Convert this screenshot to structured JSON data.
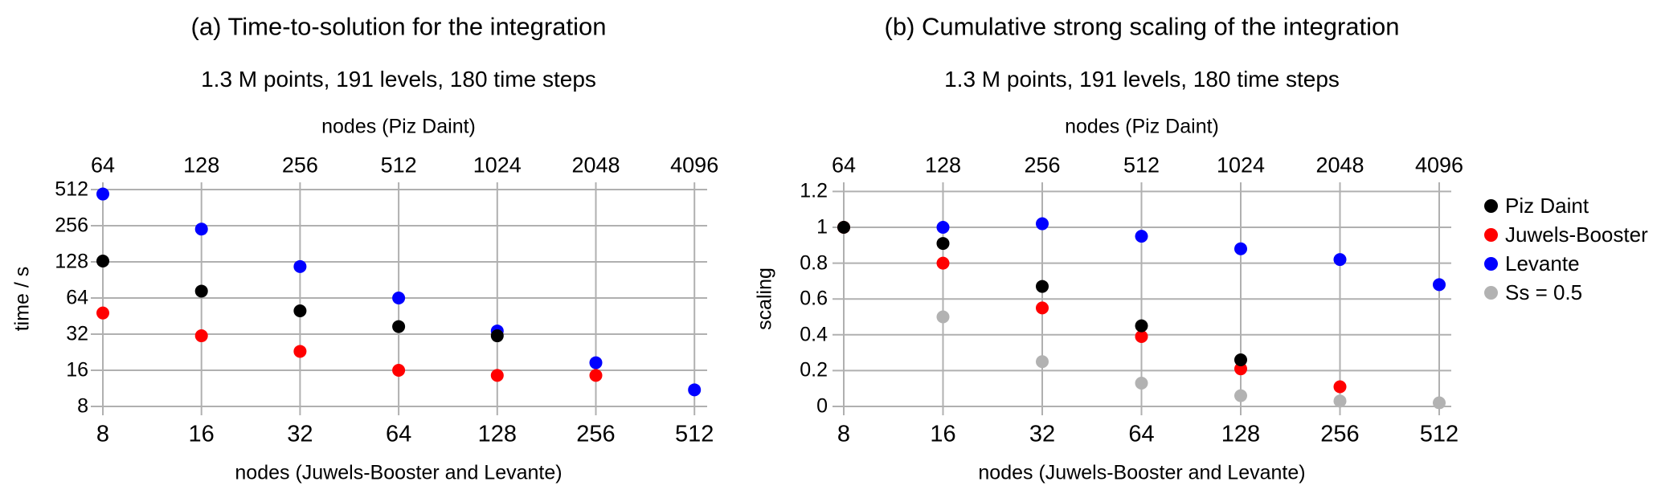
{
  "page": {
    "background": "#ffffff"
  },
  "colors": {
    "black": "#000000",
    "red": "#ff0000",
    "blue": "#0000ff",
    "gray": "#b2b2b2",
    "grid": "#b0b0b0",
    "text": "#000000"
  },
  "legend": {
    "items": [
      {
        "label": "Piz Daint",
        "color": "black"
      },
      {
        "label": "Juwels-Booster",
        "color": "red"
      },
      {
        "label": "Levante",
        "color": "blue"
      },
      {
        "label": "Ss = 0.5",
        "color": "gray"
      }
    ]
  },
  "chart_data": [
    {
      "type": "scatter",
      "panel": "a",
      "title": "(a) Time-to-solution for the integration",
      "subtitle": "1.3 M points, 191 levels, 180 time steps",
      "top_axis_label": "nodes (Piz Daint)",
      "bottom_axis_label": "nodes (Juwels-Booster and Levante)",
      "ylabel": "time / s",
      "y_scale": "log2",
      "x_scale": "log2",
      "grid": true,
      "x_ticks_bottom": [
        8,
        16,
        32,
        64,
        128,
        256,
        512
      ],
      "x_ticks_top": [
        64,
        128,
        256,
        512,
        1024,
        2048,
        4096
      ],
      "y_ticks": [
        512,
        256,
        128,
        64,
        32,
        16,
        8
      ],
      "ylim_ticks": [
        8,
        512
      ],
      "series": [
        {
          "name": "Piz Daint",
          "color": "black",
          "points": [
            [
              8,
              130
            ],
            [
              16,
              73
            ],
            [
              32,
              50
            ],
            [
              64,
              37
            ],
            [
              128,
              31
            ]
          ]
        },
        {
          "name": "Juwels-Booster",
          "color": "red",
          "points": [
            [
              8,
              48
            ],
            [
              16,
              31
            ],
            [
              32,
              23
            ],
            [
              64,
              16
            ],
            [
              128,
              14.5
            ],
            [
              256,
              14.5
            ]
          ]
        },
        {
          "name": "Levante",
          "color": "blue",
          "points": [
            [
              8,
              470
            ],
            [
              16,
              240
            ],
            [
              32,
              117
            ],
            [
              64,
              64
            ],
            [
              128,
              34
            ],
            [
              256,
              18.5
            ],
            [
              512,
              11
            ]
          ]
        }
      ]
    },
    {
      "type": "scatter",
      "panel": "b",
      "title": "(b) Cumulative strong scaling of the integration",
      "subtitle": "1.3 M points, 191 levels, 180 time steps",
      "top_axis_label": "nodes (Piz Daint)",
      "bottom_axis_label": "nodes (Juwels-Booster and Levante)",
      "ylabel": "scaling",
      "y_scale": "linear",
      "x_scale": "log2",
      "grid": true,
      "x_ticks_bottom": [
        8,
        16,
        32,
        64,
        128,
        256,
        512
      ],
      "x_ticks_top": [
        64,
        128,
        256,
        512,
        1024,
        2048,
        4096
      ],
      "y_ticks": [
        1.2,
        1,
        0.8,
        0.6,
        0.4,
        0.2,
        0
      ],
      "ylim_ticks": [
        0,
        1.2
      ],
      "series": [
        {
          "name": "Piz Daint",
          "color": "black",
          "points": [
            [
              8,
              1.0
            ],
            [
              16,
              0.91
            ],
            [
              32,
              0.67
            ],
            [
              64,
              0.45
            ],
            [
              128,
              0.26
            ]
          ]
        },
        {
          "name": "Juwels-Booster",
          "color": "red",
          "points": [
            [
              8,
              1.0
            ],
            [
              16,
              0.8
            ],
            [
              32,
              0.55
            ],
            [
              64,
              0.39
            ],
            [
              128,
              0.21
            ],
            [
              256,
              0.11
            ]
          ]
        },
        {
          "name": "Levante",
          "color": "blue",
          "points": [
            [
              16,
              1.0
            ],
            [
              32,
              1.02
            ],
            [
              64,
              0.95
            ],
            [
              128,
              0.88
            ],
            [
              256,
              0.82
            ],
            [
              512,
              0.68
            ]
          ]
        },
        {
          "name": "Ss = 0.5",
          "color": "gray",
          "points": [
            [
              16,
              0.5
            ],
            [
              32,
              0.25
            ],
            [
              64,
              0.13
            ],
            [
              128,
              0.06
            ],
            [
              256,
              0.03
            ],
            [
              512,
              0.02
            ]
          ]
        }
      ]
    }
  ]
}
